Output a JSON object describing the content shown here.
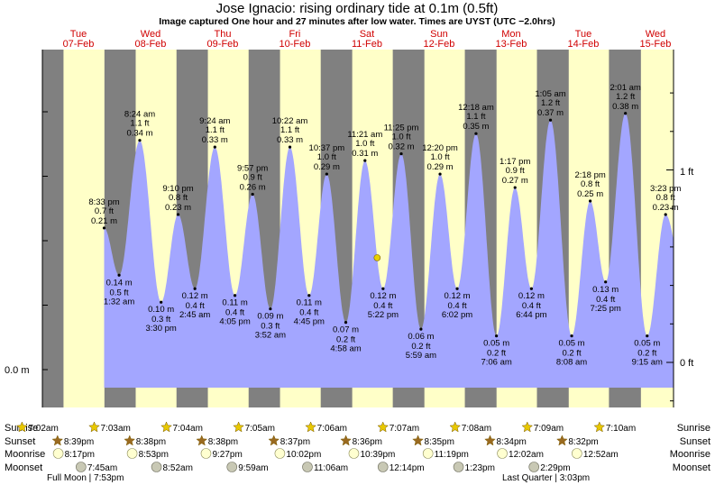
{
  "header": {
    "title": "Jose Ignacio: rising  ordinary tide at 0.1m (0.5ft)",
    "subtitle": "Image captured One hour and 27 minutes after low water. Times are UYST (UTC −2.0hrs)"
  },
  "colors": {
    "tide_fill": "#a3a6ff",
    "day_band": "#ffffc8",
    "night_band": "#808080",
    "day_label": "#d00000"
  },
  "days": [
    {
      "dow": "Tue",
      "date": "07-Feb"
    },
    {
      "dow": "Wed",
      "date": "08-Feb"
    },
    {
      "dow": "Thu",
      "date": "09-Feb"
    },
    {
      "dow": "Fri",
      "date": "10-Feb"
    },
    {
      "dow": "Sat",
      "date": "11-Feb"
    },
    {
      "dow": "Sun",
      "date": "12-Feb"
    },
    {
      "dow": "Mon",
      "date": "13-Feb"
    },
    {
      "dow": "Tue",
      "date": "14-Feb"
    },
    {
      "dow": "Wed",
      "date": "15-Feb"
    }
  ],
  "axes": {
    "left_label": "0.0 m",
    "right_labels": [
      "1 ft",
      "0 ft"
    ]
  },
  "chart_data": {
    "type": "area",
    "title": "Jose Ignacio: rising  ordinary tide at 0.1m (0.5ft)",
    "series": [
      {
        "points": [
          {
            "day": 0,
            "time": "8:33 pm",
            "m": "0.21 m",
            "ft": "0.7 ft",
            "h": 0.21,
            "t": 20.55
          },
          {
            "day": 1,
            "time": "1:32 am",
            "m": "0.14 m",
            "ft": "0.5 ft",
            "h": 0.14,
            "t": 25.53
          },
          {
            "day": 1,
            "time": "8:24 am",
            "m": "0.34 m",
            "ft": "1.1 ft",
            "h": 0.34,
            "t": 32.4
          },
          {
            "day": 1,
            "time": "3:30 pm",
            "m": "0.10 m",
            "ft": "0.3 ft",
            "h": 0.1,
            "t": 39.5
          },
          {
            "day": 1,
            "time": "9:10 pm",
            "m": "0.23 m",
            "ft": "0.8 ft",
            "h": 0.23,
            "t": 45.17
          },
          {
            "day": 2,
            "time": "2:45 am",
            "m": "0.12 m",
            "ft": "0.4 ft",
            "h": 0.12,
            "t": 50.75
          },
          {
            "day": 2,
            "time": "9:24 am",
            "m": "0.33 m",
            "ft": "1.1 ft",
            "h": 0.33,
            "t": 57.4
          },
          {
            "day": 2,
            "time": "4:05 pm",
            "m": "0.11 m",
            "ft": "0.4 ft",
            "h": 0.11,
            "t": 64.08
          },
          {
            "day": 2,
            "time": "9:57 pm",
            "m": "0.26 m",
            "ft": "0.9 ft",
            "h": 0.26,
            "t": 69.95
          },
          {
            "day": 3,
            "time": "3:52 am",
            "m": "0.09 m",
            "ft": "0.3 ft",
            "h": 0.09,
            "t": 75.87
          },
          {
            "day": 3,
            "time": "10:22 am",
            "m": "0.33 m",
            "ft": "1.1 ft",
            "h": 0.33,
            "t": 82.37
          },
          {
            "day": 3,
            "time": "4:45 pm",
            "m": "0.11 m",
            "ft": "0.4 ft",
            "h": 0.11,
            "t": 88.75
          },
          {
            "day": 3,
            "time": "10:37 pm",
            "m": "0.29 m",
            "ft": "1.0 ft",
            "h": 0.29,
            "t": 94.62
          },
          {
            "day": 4,
            "time": "4:58 am",
            "m": "0.07 m",
            "ft": "0.2 ft",
            "h": 0.07,
            "t": 100.97
          },
          {
            "day": 4,
            "time": "11:21 am",
            "m": "0.31 m",
            "ft": "1.0 ft",
            "h": 0.31,
            "t": 107.35
          },
          {
            "day": 4,
            "time": "5:22 pm",
            "m": "0.12 m",
            "ft": "0.4 ft",
            "h": 0.12,
            "t": 113.37
          },
          {
            "day": 4,
            "time": "11:25 pm",
            "m": "0.32 m",
            "ft": "1.0 ft",
            "h": 0.32,
            "t": 119.42
          },
          {
            "day": 5,
            "time": "5:59 am",
            "m": "0.06 m",
            "ft": "0.2 ft",
            "h": 0.06,
            "t": 125.98
          },
          {
            "day": 5,
            "time": "12:20 pm",
            "m": "0.29 m",
            "ft": "1.0 ft",
            "h": 0.29,
            "t": 132.33
          },
          {
            "day": 5,
            "time": "6:02 pm",
            "m": "0.12 m",
            "ft": "0.4 ft",
            "h": 0.12,
            "t": 138.03
          },
          {
            "day": 6,
            "time": "12:18 am",
            "m": "0.35 m",
            "ft": "1.1 ft",
            "h": 0.35,
            "t": 144.3
          },
          {
            "day": 6,
            "time": "7:06 am",
            "m": "0.05 m",
            "ft": "0.2 ft",
            "h": 0.05,
            "t": 151.1
          },
          {
            "day": 6,
            "time": "1:17 pm",
            "m": "0.27 m",
            "ft": "0.9 ft",
            "h": 0.27,
            "t": 157.28
          },
          {
            "day": 6,
            "time": "6:44 pm",
            "m": "0.12 m",
            "ft": "0.4 ft",
            "h": 0.12,
            "t": 162.73
          },
          {
            "day": 7,
            "time": "1:05 am",
            "m": "0.37 m",
            "ft": "1.2 ft",
            "h": 0.37,
            "t": 169.08
          },
          {
            "day": 7,
            "time": "8:08 am",
            "m": "0.05 m",
            "ft": "0.2 ft",
            "h": 0.05,
            "t": 176.13
          },
          {
            "day": 7,
            "time": "2:18 pm",
            "m": "0.25 m",
            "ft": "0.8 ft",
            "h": 0.25,
            "t": 182.3
          },
          {
            "day": 7,
            "time": "7:25 pm",
            "m": "0.13 m",
            "ft": "0.4 ft",
            "h": 0.13,
            "t": 187.42
          },
          {
            "day": 8,
            "time": "2:01 am",
            "m": "0.38 m",
            "ft": "1.2 ft",
            "h": 0.38,
            "t": 194.02
          },
          {
            "day": 8,
            "time": "9:15 am",
            "m": "0.05 m",
            "ft": "0.2 ft",
            "h": 0.05,
            "t": 201.25
          },
          {
            "day": 8,
            "time": "3:23 pm",
            "m": "0.23 m",
            "ft": "0.8 ft",
            "h": 0.23,
            "t": 207.38
          }
        ]
      }
    ],
    "sun": [
      {
        "sunrise": "7:02am",
        "rise_t": 7.03,
        "sunset": "8:39pm",
        "set_t": 20.65
      },
      {
        "sunrise": "7:03am",
        "rise_t": 31.05,
        "sunset": "8:38pm",
        "set_t": 44.63
      },
      {
        "sunrise": "7:04am",
        "rise_t": 55.07,
        "sunset": "8:38pm",
        "set_t": 68.63
      },
      {
        "sunrise": "7:05am",
        "rise_t": 79.08,
        "sunset": "8:37pm",
        "set_t": 92.62
      },
      {
        "sunrise": "7:06am",
        "rise_t": 103.1,
        "sunset": "8:36pm",
        "set_t": 116.6
      },
      {
        "sunrise": "7:07am",
        "rise_t": 127.12,
        "sunset": "8:35pm",
        "set_t": 140.58
      },
      {
        "sunrise": "7:08am",
        "rise_t": 151.13,
        "sunset": "8:34pm",
        "set_t": 164.57
      },
      {
        "sunrise": "7:09am",
        "rise_t": 175.15,
        "sunset": "8:32pm",
        "set_t": 188.53
      },
      {
        "sunrise": "7:10am",
        "rise_t": 199.17,
        "sunset": "",
        "set_t": 214
      }
    ],
    "moonrise": [
      {
        "time": "8:17pm",
        "t": 20.28
      },
      {
        "time": "8:53pm",
        "t": 44.88
      },
      {
        "time": "9:27pm",
        "t": 69.45
      },
      {
        "time": "10:02pm",
        "t": 94.03
      },
      {
        "time": "10:39pm",
        "t": 118.65
      },
      {
        "time": "11:19pm",
        "t": 143.32
      },
      {
        "time": "12:02am",
        "t": 168.03
      },
      {
        "time": "12:52am",
        "t": 192.87
      }
    ],
    "moonset": [
      {
        "time": "7:45am",
        "t": 31.75
      },
      {
        "time": "8:52am",
        "t": 56.87
      },
      {
        "time": "9:59am",
        "t": 81.98
      },
      {
        "time": "11:06am",
        "t": 107.1
      },
      {
        "time": "12:14pm",
        "t": 132.23
      },
      {
        "time": "1:23pm",
        "t": 157.38
      },
      {
        "time": "2:29pm",
        "t": 182.48
      }
    ],
    "moon_phases": [
      {
        "label": "Full Moon",
        "time": "7:53pm"
      },
      {
        "label": "Last Quarter",
        "time": "3:03pm"
      }
    ],
    "row_labels": {
      "sunrise": "Sunrise",
      "sunset": "Sunset",
      "moonrise": "Moonrise",
      "moonset": "Moonset"
    },
    "now_t": 111.4
  }
}
